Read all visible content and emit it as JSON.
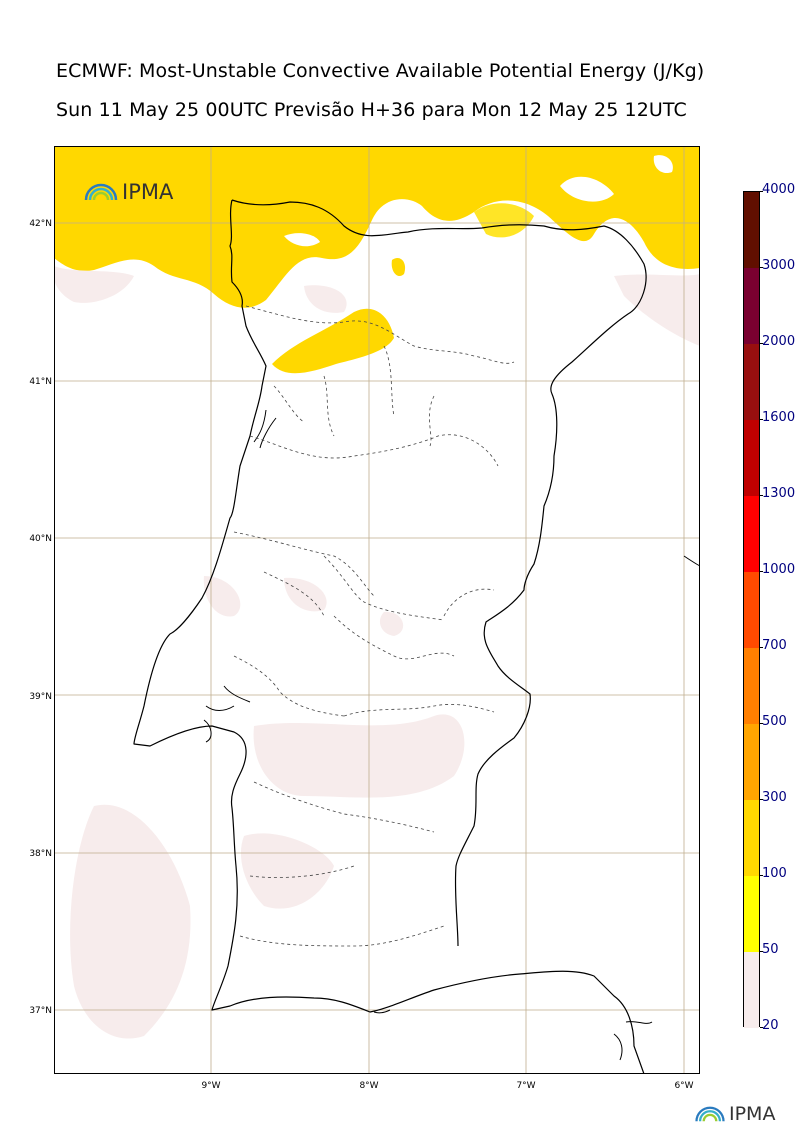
{
  "header": {
    "title_line1": "ECMWF: Most-Unstable Convective Available Potential Energy (J/Kg)",
    "title_line2": "Sun 11 May 25 00UTC Previsão H+36 para Mon 12 May 25 12UTC"
  },
  "map": {
    "lat_labels": [
      "42°N",
      "41°N",
      "40°N",
      "39°N",
      "38°N",
      "37°N"
    ],
    "lon_labels": [
      "9°W",
      "8°W",
      "7°W",
      "6°W"
    ],
    "colors": {
      "land_line": "#000000",
      "grid": "#bfae8e",
      "cape_20_50": "#f7ecec",
      "cape_100_300": "#ffd800"
    }
  },
  "logo": {
    "map_logo_text": "IPMA",
    "footer_logo_text": "IPMA"
  },
  "colorbar": {
    "levels": [
      "20",
      "50",
      "100",
      "300",
      "500",
      "700",
      "1000",
      "1300",
      "1600",
      "2000",
      "3000",
      "4000"
    ],
    "colors": [
      "#f7ecec",
      "#ffff00",
      "#ffd800",
      "#ffa500",
      "#ff7f00",
      "#ff4a00",
      "#ff0000",
      "#c00000",
      "#980f0f",
      "#7a0030",
      "#610f00"
    ]
  }
}
